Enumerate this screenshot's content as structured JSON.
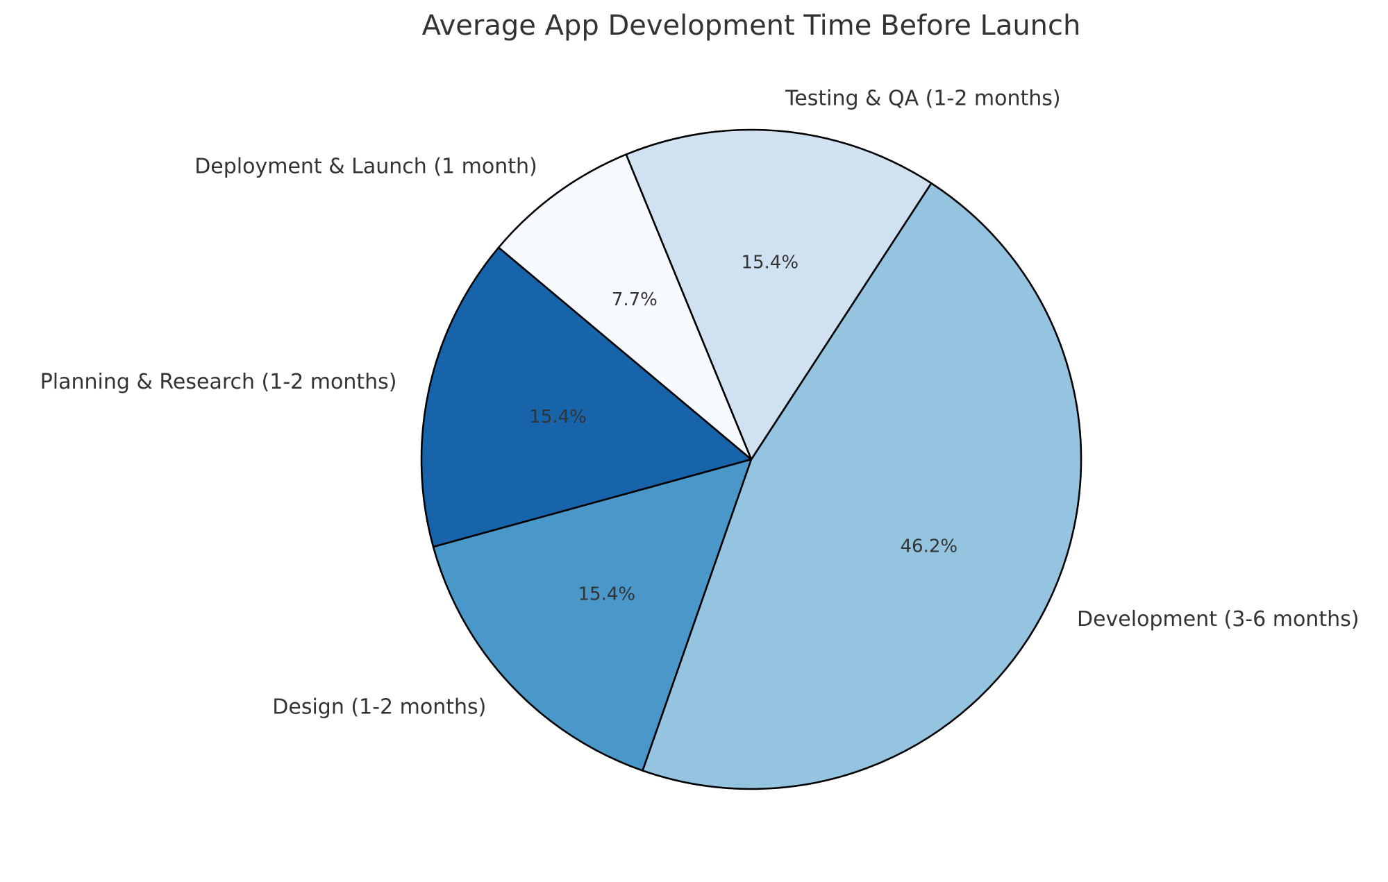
{
  "chart_data": {
    "type": "pie",
    "title": "Average App Development Time Before Launch",
    "categories": [
      "Planning & Research (1-2 months)",
      "Design (1-2 months)",
      "Development (3-6 months)",
      "Testing & QA (1-2 months)",
      "Deployment & Launch (1 month)"
    ],
    "values": [
      2,
      2,
      6,
      2,
      1
    ],
    "percent_labels": [
      "15.4%",
      "15.4%",
      "46.2%",
      "15.4%",
      "7.7%"
    ],
    "colors": [
      "#1764ab",
      "#4a98c9",
      "#94c4df",
      "#d0e1f2",
      "#f7fbff"
    ],
    "start_angle_deg": 140,
    "direction": "counterclockwise",
    "legend": "none"
  }
}
